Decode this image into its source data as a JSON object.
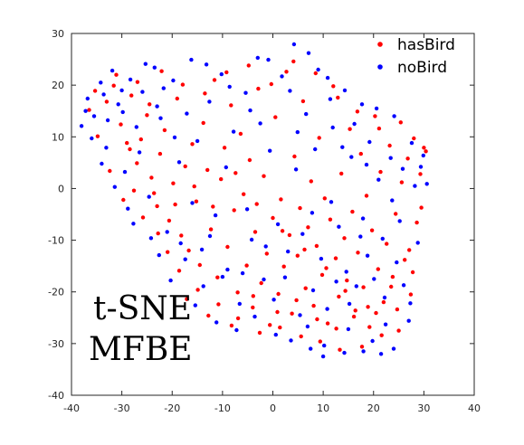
{
  "chart_data": {
    "type": "scatter",
    "title": "",
    "xlabel": "",
    "ylabel": "",
    "xlim": [
      -40,
      40
    ],
    "ylim": [
      -40,
      30
    ],
    "xticks": [
      -40,
      -30,
      -20,
      -10,
      0,
      10,
      20,
      30,
      40
    ],
    "yticks": [
      -40,
      -30,
      -20,
      -10,
      0,
      10,
      20,
      30
    ],
    "grid": false,
    "legend_position": "top-right",
    "annotations": [
      "t-SNE",
      "MFBE"
    ],
    "series": [
      {
        "name": "hasBird",
        "color": "#ff0000",
        "points": [
          [
            -36.5,
            15.2
          ],
          [
            -34.8,
            10.1
          ],
          [
            -33.0,
            16.8
          ],
          [
            -31.6,
            19.9
          ],
          [
            -30.2,
            12.4
          ],
          [
            -29.0,
            8.8
          ],
          [
            -28.1,
            18.0
          ],
          [
            -27.0,
            4.9
          ],
          [
            -26.2,
            9.5
          ],
          [
            -25.0,
            14.2
          ],
          [
            -24.1,
            2.1
          ],
          [
            -23.0,
            -3.4
          ],
          [
            -22.4,
            6.7
          ],
          [
            -21.5,
            11.3
          ],
          [
            -20.6,
            -6.2
          ],
          [
            -19.8,
            1.0
          ],
          [
            -19.0,
            17.4
          ],
          [
            -18.2,
            -9.1
          ],
          [
            -17.4,
            4.3
          ],
          [
            -16.7,
            -12.0
          ],
          [
            -16.0,
            8.6
          ],
          [
            -15.2,
            -2.5
          ],
          [
            -14.5,
            -14.8
          ],
          [
            -13.8,
            12.7
          ],
          [
            -13.0,
            3.6
          ],
          [
            -12.3,
            -7.9
          ],
          [
            -11.6,
            21.0
          ],
          [
            -11.0,
            -17.2
          ],
          [
            -10.3,
            1.8
          ],
          [
            -9.6,
            7.9
          ],
          [
            -9.0,
            -11.3
          ],
          [
            -8.3,
            16.1
          ],
          [
            -7.7,
            -4.2
          ],
          [
            -7.0,
            -20.1
          ],
          [
            -6.4,
            10.6
          ],
          [
            -5.8,
            -1.1
          ],
          [
            -5.2,
            -14.9
          ],
          [
            -4.6,
            5.5
          ],
          [
            -4.0,
            -23.0
          ],
          [
            -3.5,
            -8.4
          ],
          [
            -2.9,
            19.3
          ],
          [
            -2.3,
            -18.3
          ],
          [
            -1.8,
            2.4
          ],
          [
            -1.2,
            -12.6
          ],
          [
            -0.6,
            -26.4
          ],
          [
            0.0,
            -5.7
          ],
          [
            0.5,
            13.8
          ],
          [
            1.1,
            -20.4
          ],
          [
            1.6,
            -2.1
          ],
          [
            2.2,
            -15.1
          ],
          [
            2.7,
            22.6
          ],
          [
            3.3,
            -9.0
          ],
          [
            3.8,
            -24.2
          ],
          [
            4.3,
            6.2
          ],
          [
            4.9,
            -13.0
          ],
          [
            5.4,
            -3.8
          ],
          [
            6.0,
            16.9
          ],
          [
            6.5,
            -19.3
          ],
          [
            7.0,
            -7.5
          ],
          [
            7.6,
            1.4
          ],
          [
            8.1,
            -22.7
          ],
          [
            8.7,
            -11.1
          ],
          [
            9.2,
            9.8
          ],
          [
            9.8,
            -16.7
          ],
          [
            10.3,
            -1.9
          ],
          [
            10.9,
            -26.1
          ],
          [
            11.4,
            -6.0
          ],
          [
            12.0,
            19.8
          ],
          [
            12.5,
            -13.5
          ],
          [
            13.1,
            -20.9
          ],
          [
            13.6,
            2.9
          ],
          [
            14.2,
            -9.6
          ],
          [
            14.7,
            -17.8
          ],
          [
            15.3,
            11.5
          ],
          [
            15.8,
            -4.5
          ],
          [
            16.4,
            -23.6
          ],
          [
            16.9,
            -12.4
          ],
          [
            17.5,
            6.7
          ],
          [
            18.0,
            -19.1
          ],
          [
            18.6,
            -1.4
          ],
          [
            19.2,
            -26.8
          ],
          [
            19.7,
            -8.1
          ],
          [
            20.3,
            14.0
          ],
          [
            20.9,
            -15.6
          ],
          [
            21.4,
            3.2
          ],
          [
            22.0,
            -22.0
          ],
          [
            22.6,
            -10.7
          ],
          [
            23.2,
            8.3
          ],
          [
            23.8,
            -17.1
          ],
          [
            24.4,
            -4.9
          ],
          [
            25.0,
            -27.5
          ],
          [
            25.6,
            1.2
          ],
          [
            26.2,
            -13.8
          ],
          [
            26.8,
            5.8
          ],
          [
            27.4,
            -20.5
          ],
          [
            28.0,
            9.7
          ],
          [
            28.6,
            -6.6
          ],
          [
            29.3,
            2.8
          ],
          [
            30.0,
            7.9
          ],
          [
            30.4,
            7.2
          ],
          [
            -27.6,
            -0.4
          ],
          [
            -22.8,
            -8.7
          ],
          [
            -18.6,
            -15.9
          ],
          [
            -14.9,
            -19.6
          ],
          [
            -10.8,
            -22.4
          ],
          [
            -6.9,
            -25.1
          ],
          [
            -2.6,
            -27.9
          ],
          [
            1.4,
            -26.9
          ],
          [
            5.6,
            -28.6
          ],
          [
            9.4,
            -29.6
          ],
          [
            13.3,
            -31.2
          ],
          [
            17.7,
            -30.6
          ],
          [
            21.6,
            -28.4
          ],
          [
            -32.4,
            3.4
          ],
          [
            -29.7,
            -2.2
          ],
          [
            -25.8,
            -5.6
          ],
          [
            -20.9,
            -12.3
          ],
          [
            -17.1,
            -21.4
          ],
          [
            -12.8,
            -24.6
          ],
          [
            -8.2,
            -26.5
          ],
          [
            -3.9,
            -20.8
          ],
          [
            0.9,
            -23.9
          ],
          [
            4.7,
            -21.6
          ],
          [
            8.8,
            -25.3
          ],
          [
            12.6,
            -27.1
          ],
          [
            16.1,
            -24.8
          ],
          [
            20.5,
            -24.1
          ],
          [
            24.7,
            -23.4
          ],
          [
            27.8,
            -16.2
          ],
          [
            -35.3,
            18.9
          ],
          [
            -31.1,
            22.0
          ],
          [
            -26.9,
            20.6
          ],
          [
            -22.1,
            22.7
          ],
          [
            -17.9,
            20.1
          ],
          [
            -13.5,
            18.4
          ],
          [
            -9.2,
            22.5
          ],
          [
            -4.8,
            23.8
          ],
          [
            -0.3,
            20.2
          ],
          [
            4.1,
            24.6
          ],
          [
            8.5,
            22.3
          ],
          [
            12.9,
            17.6
          ],
          [
            16.8,
            14.9
          ],
          [
            21.1,
            11.6
          ],
          [
            25.4,
            12.8
          ],
          [
            -28.4,
            7.6
          ],
          [
            -23.6,
            -0.9
          ],
          [
            -19.4,
            -3.1
          ],
          [
            -15.6,
            0.4
          ],
          [
            -11.9,
            -3.5
          ],
          [
            -7.4,
            3.0
          ],
          [
            -3.2,
            -3.0
          ],
          [
            1.9,
            -8.2
          ],
          [
            6.3,
            -11.8
          ],
          [
            10.6,
            -15.4
          ],
          [
            14.4,
            -19.8
          ],
          [
            18.9,
            -22.9
          ],
          [
            23.5,
            -19.0
          ],
          [
            27.1,
            -11.9
          ],
          [
            29.5,
            -3.7
          ],
          [
            -24.5,
            16.3
          ]
        ]
      },
      {
        "name": "noBird",
        "color": "#0000ff",
        "points": [
          [
            -38.0,
            12.1
          ],
          [
            -36.8,
            17.4
          ],
          [
            -35.5,
            14.0
          ],
          [
            -34.2,
            20.5
          ],
          [
            -33.1,
            7.9
          ],
          [
            -31.9,
            22.8
          ],
          [
            -30.7,
            16.3
          ],
          [
            -29.4,
            3.2
          ],
          [
            -28.3,
            21.1
          ],
          [
            -27.1,
            11.9
          ],
          [
            -25.9,
            18.7
          ],
          [
            -24.6,
            -1.6
          ],
          [
            -23.5,
            23.4
          ],
          [
            -22.3,
            13.6
          ],
          [
            -21.0,
            -8.4
          ],
          [
            -19.8,
            20.9
          ],
          [
            -18.6,
            5.1
          ],
          [
            -17.4,
            -13.7
          ],
          [
            -16.2,
            24.9
          ],
          [
            -15.0,
            9.2
          ],
          [
            -13.8,
            -18.9
          ],
          [
            -12.6,
            16.8
          ],
          [
            -11.4,
            -5.2
          ],
          [
            -10.2,
            22.1
          ],
          [
            -9.0,
            -15.7
          ],
          [
            -7.8,
            11.0
          ],
          [
            -6.6,
            -22.3
          ],
          [
            -5.4,
            18.5
          ],
          [
            -4.2,
            -9.9
          ],
          [
            -3.0,
            25.3
          ],
          [
            -1.8,
            -17.6
          ],
          [
            -0.6,
            7.3
          ],
          [
            0.6,
            -28.3
          ],
          [
            1.8,
            21.7
          ],
          [
            3.0,
            -12.2
          ],
          [
            4.2,
            27.9
          ],
          [
            5.4,
            -24.5
          ],
          [
            6.6,
            14.4
          ],
          [
            7.8,
            -4.7
          ],
          [
            9.0,
            23.0
          ],
          [
            10.2,
            -30.4
          ],
          [
            11.4,
            17.3
          ],
          [
            12.6,
            -18.0
          ],
          [
            13.8,
            8.0
          ],
          [
            15.0,
            -27.2
          ],
          [
            16.2,
            12.5
          ],
          [
            17.4,
            -9.3
          ],
          [
            18.6,
            4.6
          ],
          [
            19.8,
            -29.5
          ],
          [
            21.0,
            1.7
          ],
          [
            22.2,
            -21.1
          ],
          [
            23.4,
            5.9
          ],
          [
            24.6,
            -14.3
          ],
          [
            25.8,
            3.8
          ],
          [
            27.0,
            -25.6
          ],
          [
            28.2,
            0.5
          ],
          [
            29.4,
            4.2
          ],
          [
            30.6,
            0.9
          ],
          [
            24.0,
            -31.0
          ],
          [
            21.5,
            -32.0
          ],
          [
            18.0,
            -31.5
          ],
          [
            14.2,
            -31.8
          ],
          [
            10.0,
            -32.5
          ],
          [
            7.5,
            -31.0
          ],
          [
            -36.0,
            9.7
          ],
          [
            -32.8,
            13.2
          ],
          [
            -30.0,
            19.0
          ],
          [
            -26.5,
            7.0
          ],
          [
            -23.0,
            15.9
          ],
          [
            -19.5,
            9.9
          ],
          [
            -16.0,
            -2.8
          ],
          [
            -12.5,
            -9.2
          ],
          [
            -9.3,
            4.1
          ],
          [
            -6.0,
            -16.4
          ],
          [
            -2.5,
            12.6
          ],
          [
            1.0,
            -6.9
          ],
          [
            4.6,
            3.7
          ],
          [
            8.0,
            -19.7
          ],
          [
            11.6,
            -2.6
          ],
          [
            15.2,
            -22.3
          ],
          [
            18.8,
            -13.0
          ],
          [
            22.4,
            -26.3
          ],
          [
            26.0,
            -18.7
          ],
          [
            28.8,
            -10.5
          ],
          [
            -34.0,
            4.8
          ],
          [
            -28.8,
            -3.9
          ],
          [
            -24.2,
            -9.6
          ],
          [
            -20.3,
            -17.8
          ],
          [
            -15.4,
            -22.6
          ],
          [
            -11.2,
            -25.9
          ],
          [
            -7.2,
            -27.4
          ],
          [
            -3.6,
            -24.8
          ],
          [
            0.2,
            -21.5
          ],
          [
            3.6,
            -29.4
          ],
          [
            6.9,
            -26.7
          ],
          [
            10.8,
            -23.3
          ],
          [
            14.6,
            -16.1
          ],
          [
            17.9,
            -5.8
          ],
          [
            21.8,
            -9.7
          ],
          [
            25.2,
            -6.3
          ],
          [
            -37.2,
            15.0
          ],
          [
            -33.6,
            18.2
          ],
          [
            -29.8,
            14.8
          ],
          [
            -25.3,
            24.1
          ],
          [
            -21.7,
            19.4
          ],
          [
            -17.1,
            14.5
          ],
          [
            -13.2,
            24.0
          ],
          [
            -8.6,
            19.7
          ],
          [
            -4.5,
            15.1
          ],
          [
            -0.9,
            24.9
          ],
          [
            3.4,
            18.9
          ],
          [
            7.1,
            26.2
          ],
          [
            10.9,
            21.4
          ],
          [
            14.3,
            19.0
          ],
          [
            17.7,
            16.3
          ],
          [
            20.6,
            15.5
          ],
          [
            24.1,
            14.0
          ],
          [
            27.6,
            8.8
          ],
          [
            29.9,
            6.4
          ],
          [
            -31.4,
            0.3
          ],
          [
            -27.7,
            -6.8
          ],
          [
            -22.6,
            -12.9
          ],
          [
            -18.3,
            -10.6
          ],
          [
            -14.1,
            -11.8
          ],
          [
            -10.0,
            -17.1
          ],
          [
            -5.1,
            -4.0
          ],
          [
            -1.4,
            -11.2
          ],
          [
            2.4,
            -17.2
          ],
          [
            5.9,
            -8.8
          ],
          [
            9.6,
            -13.6
          ],
          [
            13.1,
            -7.4
          ],
          [
            16.6,
            -18.9
          ],
          [
            20.1,
            -17.5
          ],
          [
            23.7,
            -2.3
          ],
          [
            27.3,
            -22.2
          ],
          [
            19.2,
            9.0
          ],
          [
            15.6,
            6.1
          ],
          [
            11.9,
            11.8
          ],
          [
            8.4,
            7.6
          ],
          [
            4.9,
            10.9
          ]
        ]
      }
    ]
  }
}
